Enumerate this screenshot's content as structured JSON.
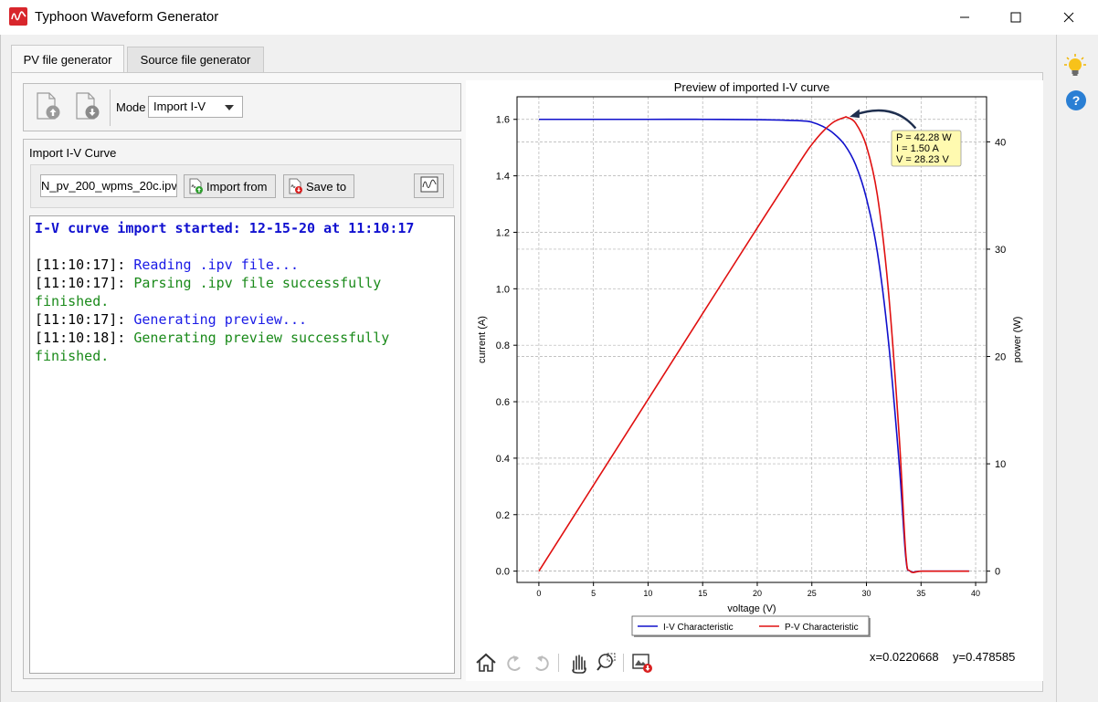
{
  "window": {
    "title": "Typhoon Waveform Generator",
    "minimize_icon": "minimize-icon",
    "maximize_icon": "maximize-icon",
    "close_icon": "close-icon"
  },
  "tabs": [
    {
      "label": "PV file generator",
      "active": true
    },
    {
      "label": "Source file generator",
      "active": false
    }
  ],
  "toolbar": {
    "open_icon": "file-upload-icon",
    "save_icon": "file-download-icon",
    "mode_label": "Mode",
    "mode_value": "Import I-V"
  },
  "import_group": {
    "title": "Import I-V Curve",
    "file_name": "N_pv_200_wpms_20c.ipv",
    "import_label": "Import from",
    "save_label": "Save to",
    "preview_icon": "waveform-icon"
  },
  "log": {
    "header": "I-V curve import started: 12-15-20 at 11:10:17",
    "entries": [
      {
        "time": "[11:10:17]:",
        "msg": " Reading .ipv file...",
        "color": "#1a1ae6"
      },
      {
        "time": "[11:10:17]:",
        "msg": " Parsing .ipv file successfully finished.",
        "color": "#1a8a1a"
      },
      {
        "time": "[11:10:17]:",
        "msg": " Generating preview...",
        "color": "#1a1ae6"
      },
      {
        "time": "[11:10:18]:",
        "msg": " Generating preview successfully finished.",
        "color": "#1a8a1a"
      }
    ]
  },
  "chart_data": {
    "type": "line",
    "title": "Preview of imported I-V curve",
    "xlabel": "voltage (V)",
    "ylabel": "current (A)",
    "y2label": "power (W)",
    "xlim": [
      -2,
      41
    ],
    "ylim": [
      -0.04,
      1.68
    ],
    "y2lim": [
      -1.05,
      44.2
    ],
    "xticks": [
      0,
      5,
      10,
      15,
      20,
      25,
      30,
      35,
      40
    ],
    "yticks": [
      0.0,
      0.2,
      0.4,
      0.6,
      0.8,
      1.0,
      1.2,
      1.4,
      1.6
    ],
    "y2ticks": [
      0,
      10,
      20,
      30,
      40
    ],
    "grid": true,
    "legend_position": "bottom-center",
    "series": [
      {
        "name": "I-V Characteristic",
        "color": "#1010cc",
        "axis": "left",
        "x": [
          0,
          5,
          10,
          15,
          20,
          24,
          25,
          26,
          27,
          28,
          29,
          30,
          31,
          32,
          33,
          33.6,
          34,
          35,
          37,
          39.4
        ],
        "y": [
          1.6,
          1.6,
          1.6,
          1.6,
          1.599,
          1.595,
          1.59,
          1.575,
          1.55,
          1.51,
          1.44,
          1.32,
          1.13,
          0.82,
          0.38,
          0.05,
          0.0,
          0.0,
          0.0,
          0.0
        ]
      },
      {
        "name": "P-V Characteristic",
        "color": "#e01010",
        "axis": "right",
        "x": [
          0,
          5,
          10,
          15,
          20,
          24,
          25,
          26,
          27,
          28,
          28.23,
          29,
          30,
          31,
          32,
          33,
          33.6,
          34,
          35,
          37,
          39.4
        ],
        "y": [
          0,
          8.0,
          16.0,
          24.0,
          31.98,
          38.28,
          39.75,
          40.95,
          41.85,
          42.28,
          42.28,
          41.76,
          39.6,
          35.03,
          26.24,
          12.54,
          1.68,
          0,
          0,
          0,
          0
        ]
      }
    ],
    "annotation": {
      "lines": [
        "P = 42.28 W",
        "I = 1.50 A",
        "V = 28.23 V"
      ],
      "point": {
        "x": 28.23,
        "y": 42.28
      }
    }
  },
  "plot_toolbar": {
    "icons": [
      "home-icon",
      "back-icon",
      "forward-icon",
      "pan-icon",
      "zoom-icon",
      "save-figure-icon"
    ],
    "x_readout": "x=0.0220668",
    "y_readout": "y=0.478585"
  },
  "sidebar": {
    "hint_icon": "lightbulb-icon",
    "help_icon": "help-icon"
  }
}
